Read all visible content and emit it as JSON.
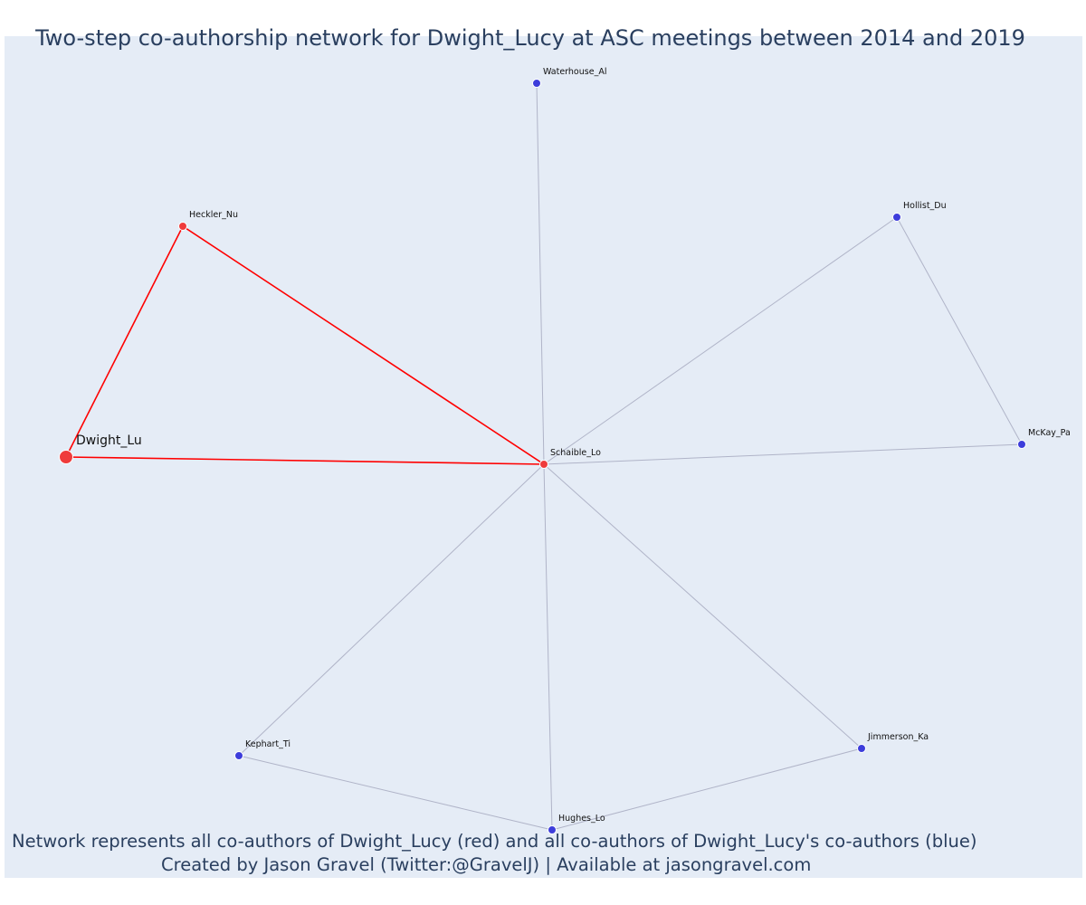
{
  "chart_data": {
    "type": "network",
    "title": "Two-step co-authorship network for Dwight_Lucy at ASC meetings between 2014 and 2019",
    "caption_line1": "Network represents all co-authors of Dwight_Lucy (red) and all co-authors of Dwight_Lucy's co-authors (blue)",
    "caption_line2": "Created by Jason Gravel (Twitter:@GravelJ) | Available at jasongravel.com",
    "colors": {
      "background": "#e5ecf6",
      "direct": "#ff0000",
      "direct_node": "#ef3b3b",
      "indirect_node": "#3d3ddb",
      "indirect_edge": "#b0b4c8",
      "text": "#2a3f5f"
    },
    "nodes": [
      {
        "id": "Dwight_Lu",
        "group": "focal"
      },
      {
        "id": "Heckler_Nu",
        "group": "coauthor"
      },
      {
        "id": "Schaible_Lo",
        "group": "coauthor"
      },
      {
        "id": "Waterhouse_Al",
        "group": "second_step"
      },
      {
        "id": "Hollist_Du",
        "group": "second_step"
      },
      {
        "id": "McKay_Pa",
        "group": "second_step"
      },
      {
        "id": "Jimmerson_Ka",
        "group": "second_step"
      },
      {
        "id": "Hughes_Lo",
        "group": "second_step"
      },
      {
        "id": "Kephart_Ti",
        "group": "second_step"
      }
    ],
    "edges": [
      {
        "source": "Dwight_Lu",
        "target": "Heckler_Nu",
        "group": "direct"
      },
      {
        "source": "Dwight_Lu",
        "target": "Schaible_Lo",
        "group": "direct"
      },
      {
        "source": "Heckler_Nu",
        "target": "Schaible_Lo",
        "group": "direct"
      },
      {
        "source": "Schaible_Lo",
        "target": "Waterhouse_Al",
        "group": "indirect"
      },
      {
        "source": "Schaible_Lo",
        "target": "Hollist_Du",
        "group": "indirect"
      },
      {
        "source": "Schaible_Lo",
        "target": "McKay_Pa",
        "group": "indirect"
      },
      {
        "source": "Schaible_Lo",
        "target": "Jimmerson_Ka",
        "group": "indirect"
      },
      {
        "source": "Schaible_Lo",
        "target": "Hughes_Lo",
        "group": "indirect"
      },
      {
        "source": "Schaible_Lo",
        "target": "Kephart_Ti",
        "group": "indirect"
      },
      {
        "source": "Hollist_Du",
        "target": "McKay_Pa",
        "group": "indirect"
      },
      {
        "source": "Kephart_Ti",
        "target": "Hughes_Lo",
        "group": "indirect"
      },
      {
        "source": "Hughes_Lo",
        "target": "Jimmerson_Ka",
        "group": "indirect"
      }
    ]
  }
}
